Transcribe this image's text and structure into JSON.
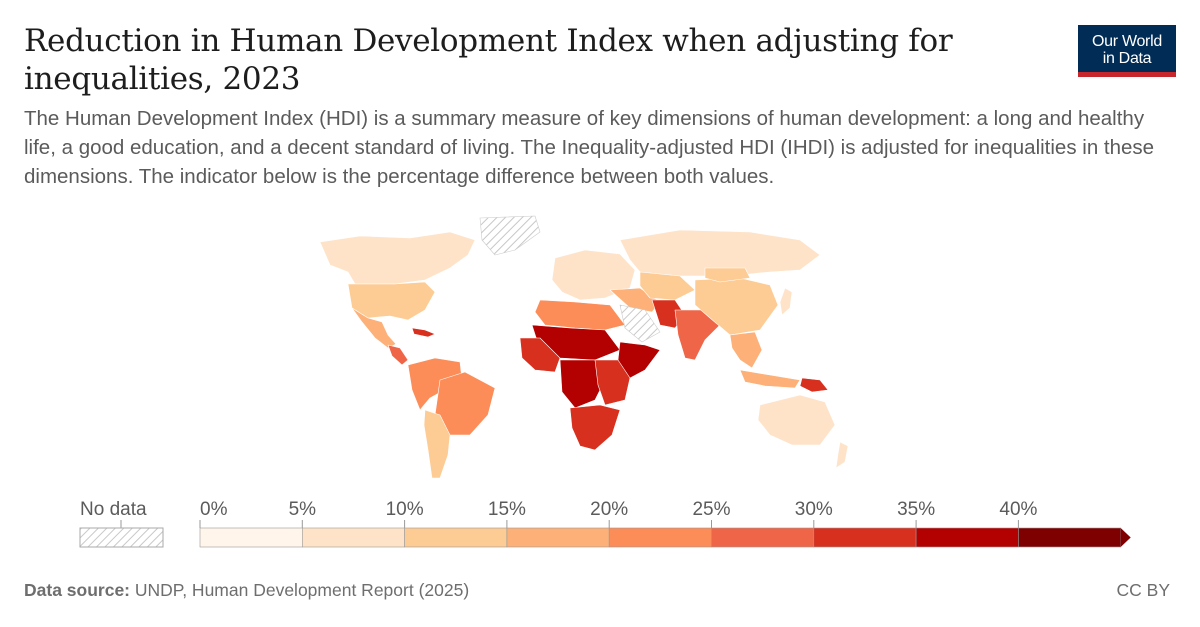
{
  "header": {
    "title": "Reduction in Human Development Index when adjusting for inequalities, 2023",
    "subtitle": "The Human Development Index (HDI) is a summary measure of key dimensions of human development: a long and healthy life, a good education, and a decent standard of living. The Inequality-adjusted HDI (IHDI) is adjusted for inequalities in these dimensions. The indicator below is the percentage difference between both values."
  },
  "logo": {
    "line1": "Our World",
    "line2": "in Data",
    "bg": "#012c56",
    "accent": "#c6262c"
  },
  "legend": {
    "no_data_label": "No data",
    "ticks": [
      "0%",
      "5%",
      "10%",
      "15%",
      "20%",
      "25%",
      "30%",
      "35%",
      "40%"
    ],
    "colors": [
      "#fff5eb",
      "#fee3c9",
      "#fdcb94",
      "#fdb077",
      "#fc8d59",
      "#ef6548",
      "#d7301f",
      "#b30000",
      "#7f0000"
    ]
  },
  "map": {
    "regions": [
      {
        "name": "Canada",
        "value": 5
      },
      {
        "name": "United States",
        "value": 12
      },
      {
        "name": "Mexico",
        "value": 18
      },
      {
        "name": "Central America",
        "value": 25
      },
      {
        "name": "Caribbean",
        "value": 30
      },
      {
        "name": "Greenland",
        "value": null
      },
      {
        "name": "South America (north)",
        "value": 20
      },
      {
        "name": "Brazil",
        "value": 22
      },
      {
        "name": "South America (south)",
        "value": 12
      },
      {
        "name": "Europe",
        "value": 7
      },
      {
        "name": "Russia",
        "value": 8
      },
      {
        "name": "North Africa",
        "value": 22
      },
      {
        "name": "Sahel",
        "value": 35
      },
      {
        "name": "West Africa",
        "value": 33
      },
      {
        "name": "Central Africa",
        "value": 35
      },
      {
        "name": "East Africa",
        "value": 30
      },
      {
        "name": "Horn of Africa",
        "value": 38
      },
      {
        "name": "Southern Africa",
        "value": 32
      },
      {
        "name": "Middle East",
        "value": 18
      },
      {
        "name": "Arabian Peninsula",
        "value": null
      },
      {
        "name": "Central Asia",
        "value": 10
      },
      {
        "name": "Afghanistan / Pakistan",
        "value": 32
      },
      {
        "name": "India",
        "value": 28
      },
      {
        "name": "China",
        "value": 13
      },
      {
        "name": "Mongolia",
        "value": 10
      },
      {
        "name": "Southeast Asia",
        "value": 18
      },
      {
        "name": "Indonesia",
        "value": 16
      },
      {
        "name": "Papua New Guinea",
        "value": 30
      },
      {
        "name": "Australia",
        "value": 7
      },
      {
        "name": "New Zealand",
        "value": 7
      },
      {
        "name": "Japan",
        "value": 7
      }
    ]
  }
}
